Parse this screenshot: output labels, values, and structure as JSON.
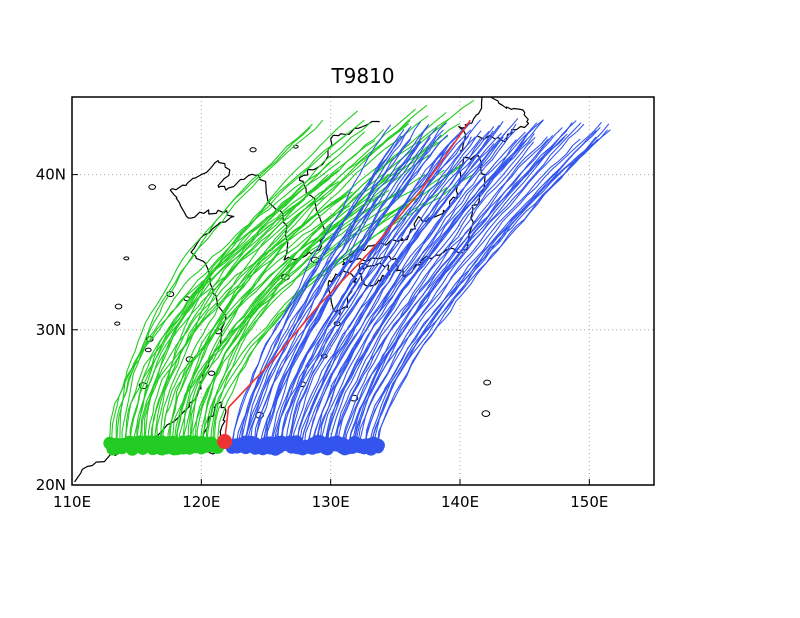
{
  "chart_data": {
    "type": "map",
    "title": "T9810",
    "xlabel": "",
    "ylabel": "",
    "xlim": [
      110,
      155
    ],
    "ylim": [
      20,
      45
    ],
    "grid": true,
    "x_ticks": [
      {
        "value": 110,
        "label": "110E"
      },
      {
        "value": 120,
        "label": "120E"
      },
      {
        "value": 130,
        "label": "130E"
      },
      {
        "value": 140,
        "label": "140E"
      },
      {
        "value": 150,
        "label": "150E"
      }
    ],
    "y_ticks": [
      {
        "value": 20,
        "label": "20N"
      },
      {
        "value": 30,
        "label": "30N"
      },
      {
        "value": 40,
        "label": "40N"
      }
    ],
    "colors": {
      "west_tracks": "#22cc22",
      "east_tracks": "#3355ee",
      "center_track": "#ee3333",
      "coastline": "#000000",
      "grid": "#aaaaaa"
    },
    "center_point": {
      "lon": 121.8,
      "lat": 22.8
    },
    "center_track": [
      [
        121.8,
        22.8
      ],
      [
        122.1,
        25.0
      ],
      [
        125.5,
        28.0
      ],
      [
        129.0,
        31.5
      ],
      [
        133.0,
        35.0
      ],
      [
        137.0,
        39.0
      ],
      [
        140.8,
        43.5
      ]
    ],
    "west_tracks": {
      "count": 50,
      "start_lon": [
        113.0,
        121.2
      ],
      "start_lat": [
        22.3,
        22.8
      ],
      "end_lon": [
        127.5,
        141.0
      ],
      "end_lat": [
        38.0,
        44.8
      ]
    },
    "east_tracks": {
      "count": 75,
      "start_lon": [
        122.3,
        133.7
      ],
      "start_lat": [
        22.3,
        22.8
      ],
      "end_lon": [
        135.0,
        151.5
      ],
      "end_lat": [
        42.0,
        43.5
      ]
    },
    "coastlines": [
      [
        [
          110.2,
          20.2
        ],
        [
          111.2,
          21.2
        ],
        [
          112.8,
          21.8
        ],
        [
          114.2,
          22.3
        ],
        [
          115.5,
          22.7
        ],
        [
          117.0,
          23.5
        ],
        [
          118.4,
          24.5
        ],
        [
          119.5,
          25.5
        ],
        [
          119.9,
          26.6
        ],
        [
          120.6,
          28.0
        ],
        [
          121.5,
          29.2
        ],
        [
          121.9,
          30.8
        ],
        [
          121.2,
          31.6
        ],
        [
          120.9,
          32.6
        ],
        [
          120.3,
          34.3
        ],
        [
          119.2,
          35.0
        ],
        [
          120.2,
          36.1
        ],
        [
          121.3,
          36.8
        ],
        [
          122.5,
          37.3
        ],
        [
          121.3,
          37.7
        ],
        [
          120.2,
          37.5
        ],
        [
          119.0,
          37.2
        ],
        [
          118.3,
          38.2
        ],
        [
          117.6,
          39.0
        ],
        [
          118.8,
          39.3
        ],
        [
          120.0,
          40.0
        ],
        [
          121.3,
          40.9
        ],
        [
          122.2,
          40.3
        ],
        [
          121.3,
          39.3
        ],
        [
          121.9,
          39.0
        ],
        [
          123.3,
          39.7
        ],
        [
          124.4,
          40.0
        ]
      ],
      [
        [
          124.4,
          40.0
        ],
        [
          125.0,
          39.2
        ],
        [
          125.2,
          38.2
        ],
        [
          126.3,
          37.5
        ],
        [
          126.6,
          35.8
        ],
        [
          126.4,
          34.5
        ],
        [
          127.5,
          34.6
        ],
        [
          128.5,
          34.9
        ],
        [
          129.3,
          35.4
        ],
        [
          129.5,
          36.5
        ],
        [
          128.8,
          38.2
        ],
        [
          128.1,
          39.1
        ],
        [
          127.6,
          39.8
        ],
        [
          128.6,
          40.3
        ],
        [
          129.8,
          41.2
        ],
        [
          130.0,
          42.3
        ],
        [
          131.0,
          42.6
        ],
        [
          132.5,
          43.1
        ],
        [
          133.8,
          43.4
        ]
      ],
      [
        [
          130.9,
          33.9
        ],
        [
          130.3,
          33.4
        ],
        [
          129.8,
          32.7
        ],
        [
          130.2,
          31.3
        ],
        [
          130.7,
          31.0
        ],
        [
          131.3,
          31.6
        ],
        [
          131.6,
          32.6
        ],
        [
          132.0,
          33.3
        ],
        [
          131.3,
          33.8
        ],
        [
          130.9,
          33.9
        ]
      ],
      [
        [
          130.9,
          34.2
        ],
        [
          131.8,
          34.5
        ],
        [
          133.0,
          34.5
        ],
        [
          134.2,
          34.7
        ],
        [
          135.0,
          34.6
        ],
        [
          135.1,
          33.8
        ],
        [
          135.8,
          33.5
        ],
        [
          136.6,
          34.2
        ],
        [
          137.2,
          34.6
        ],
        [
          138.4,
          34.8
        ],
        [
          139.1,
          35.2
        ],
        [
          139.8,
          35.0
        ],
        [
          140.6,
          35.2
        ],
        [
          140.9,
          36.6
        ],
        [
          141.0,
          37.8
        ],
        [
          141.5,
          38.5
        ],
        [
          141.9,
          39.6
        ],
        [
          141.6,
          40.6
        ],
        [
          141.3,
          41.2
        ],
        [
          140.6,
          41.1
        ],
        [
          140.0,
          40.6
        ],
        [
          140.0,
          39.7
        ],
        [
          139.8,
          38.8
        ],
        [
          139.2,
          38.0
        ],
        [
          138.7,
          37.5
        ],
        [
          137.4,
          37.0
        ],
        [
          136.8,
          37.3
        ],
        [
          136.0,
          36.0
        ],
        [
          135.2,
          35.7
        ],
        [
          133.5,
          35.5
        ],
        [
          132.3,
          35.2
        ],
        [
          131.2,
          34.6
        ],
        [
          130.9,
          34.2
        ]
      ],
      [
        [
          132.1,
          33.8
        ],
        [
          132.9,
          34.1
        ],
        [
          134.4,
          34.2
        ],
        [
          134.6,
          33.6
        ],
        [
          133.7,
          33.2
        ],
        [
          132.9,
          32.8
        ],
        [
          132.4,
          33.2
        ],
        [
          132.1,
          33.8
        ]
      ],
      [
        [
          140.0,
          41.5
        ],
        [
          140.4,
          42.4
        ],
        [
          139.9,
          43.1
        ],
        [
          140.8,
          43.3
        ],
        [
          141.4,
          43.9
        ],
        [
          141.7,
          45.0
        ]
      ],
      [
        [
          141.3,
          42.5
        ],
        [
          142.7,
          42.3
        ],
        [
          143.5,
          42.1
        ],
        [
          144.0,
          42.9
        ],
        [
          145.3,
          43.3
        ],
        [
          145.0,
          44.0
        ],
        [
          144.0,
          44.2
        ],
        [
          143.0,
          44.6
        ],
        [
          142.2,
          45.0
        ]
      ],
      [
        [
          120.1,
          23.0
        ],
        [
          120.4,
          22.5
        ],
        [
          120.9,
          22.0
        ],
        [
          121.4,
          22.7
        ],
        [
          121.6,
          23.8
        ],
        [
          121.9,
          24.8
        ],
        [
          121.5,
          25.3
        ],
        [
          121.0,
          25.0
        ],
        [
          120.6,
          24.4
        ],
        [
          120.1,
          23.0
        ]
      ]
    ],
    "islands": [
      [
        126.5,
        33.4
      ],
      [
        113.6,
        31.5
      ],
      [
        116.0,
        29.4
      ],
      [
        117.6,
        32.3
      ],
      [
        113.5,
        30.4
      ],
      [
        115.9,
        28.7
      ],
      [
        121.3,
        29.9
      ],
      [
        124.5,
        24.5
      ],
      [
        127.8,
        26.5
      ],
      [
        129.5,
        28.3
      ],
      [
        130.5,
        30.4
      ],
      [
        128.8,
        34.5
      ],
      [
        132.5,
        34.1
      ],
      [
        119.1,
        28.1
      ],
      [
        120.8,
        27.2
      ],
      [
        114.2,
        34.6
      ],
      [
        115.5,
        26.4
      ],
      [
        116.2,
        39.2
      ],
      [
        118.9,
        32.0
      ],
      [
        124.0,
        41.6
      ],
      [
        127.3,
        41.8
      ],
      [
        142.1,
        26.6
      ],
      [
        142.0,
        24.6
      ],
      [
        131.8,
        25.6
      ]
    ]
  }
}
